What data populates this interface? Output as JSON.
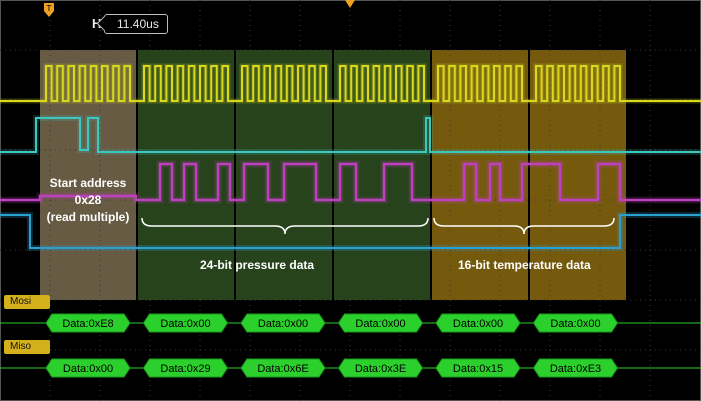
{
  "colors": {
    "background": "#000000",
    "grid": "#3a3a3a",
    "ch1_clock": "#d8d81c",
    "ch2_cs": "#3cc8c0",
    "ch3_mosi_analog": "#c040c0",
    "ch4_miso_analog": "#2aa0d0",
    "decode_bus": "#2cd02c",
    "decode_text": "#000000",
    "region_start": "#8a7a5a",
    "region_pressure": "#2a4a1e",
    "region_temperature": "#8a6a10"
  },
  "header": {
    "h_label": "H",
    "h_value": "11.40us"
  },
  "annotations": {
    "start_line1": "Start address",
    "start_line2": "0x28",
    "start_line3": "(read multiple)",
    "pressure": "24-bit pressure data",
    "temperature": "16-bit temperature data"
  },
  "buses": {
    "mosi": {
      "label": "Mosi",
      "packets": [
        "Data:0xE8",
        "Data:0x00",
        "Data:0x00",
        "Data:0x00",
        "Data:0x00",
        "Data:0x00"
      ]
    },
    "miso": {
      "label": "Miso",
      "packets": [
        "Data:0x00",
        "Data:0x29",
        "Data:0x6E",
        "Data:0x3E",
        "Data:0x15",
        "Data:0xE3"
      ]
    }
  }
}
